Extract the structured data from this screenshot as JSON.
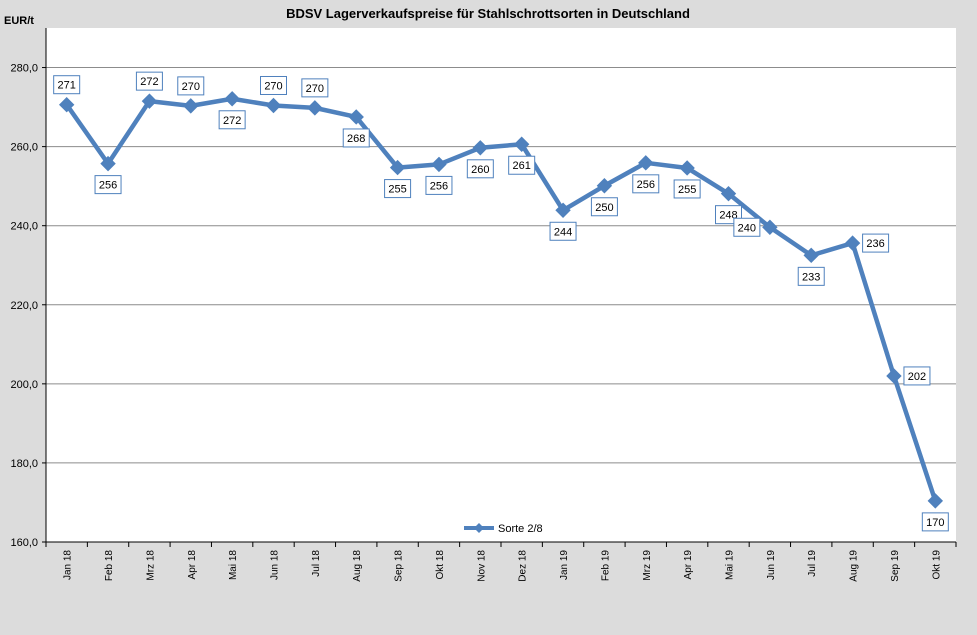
{
  "chart_data": {
    "type": "line",
    "title": "BDSV Lagerverkaufspreise für Stahlschrottsorten in Deutschland",
    "ylabel": "EUR/t",
    "xlabel": "",
    "categories": [
      "Jan 18",
      "Feb 18",
      "Mrz 18",
      "Apr 18",
      "Mai 18",
      "Jun 18",
      "Jul 18",
      "Aug 18",
      "Sep 18",
      "Okt 18",
      "Nov 18",
      "Dez 18",
      "Jan 19",
      "Feb 19",
      "Mrz 19",
      "Apr 19",
      "Mai 19",
      "Jun 19",
      "Jul 19",
      "Aug 19",
      "Sep 19",
      "Okt 19"
    ],
    "series": [
      {
        "name": "Sorte 2/8",
        "values": [
          270.6,
          255.7,
          271.5,
          270.3,
          272.1,
          270.4,
          269.8,
          267.5,
          254.7,
          255.5,
          259.7,
          260.6,
          243.9,
          250.1,
          255.9,
          254.6,
          248.1,
          239.6,
          232.5,
          235.6,
          202.0,
          170.4
        ],
        "labels": [
          "271",
          "256",
          "272",
          "270",
          "272",
          "270",
          "270",
          "268",
          "255",
          "256",
          "260",
          "261",
          "244",
          "250",
          "256",
          "255",
          "248",
          "240",
          "233",
          "236",
          "202",
          "170"
        ],
        "label_pos": [
          "above",
          "below",
          "above",
          "above",
          "below",
          "above",
          "above",
          "below",
          "below",
          "below",
          "below",
          "below",
          "below",
          "below",
          "below",
          "below",
          "below",
          "left",
          "below",
          "right",
          "right",
          "below"
        ]
      }
    ],
    "ylim": [
      160,
      290
    ],
    "yticks": [
      "160,0",
      "180,0",
      "200,0",
      "220,0",
      "240,0",
      "260,0",
      "280,0"
    ],
    "ytick_values": [
      160,
      180,
      200,
      220,
      240,
      260,
      280
    ],
    "grid": true,
    "legend_position": "bottom-center",
    "colors": {
      "line": "#4f81bd",
      "label_border": "#4f81bd",
      "grid": "#8c8c8c",
      "background": "#ffffff",
      "frame": "#dcdcdc"
    }
  }
}
